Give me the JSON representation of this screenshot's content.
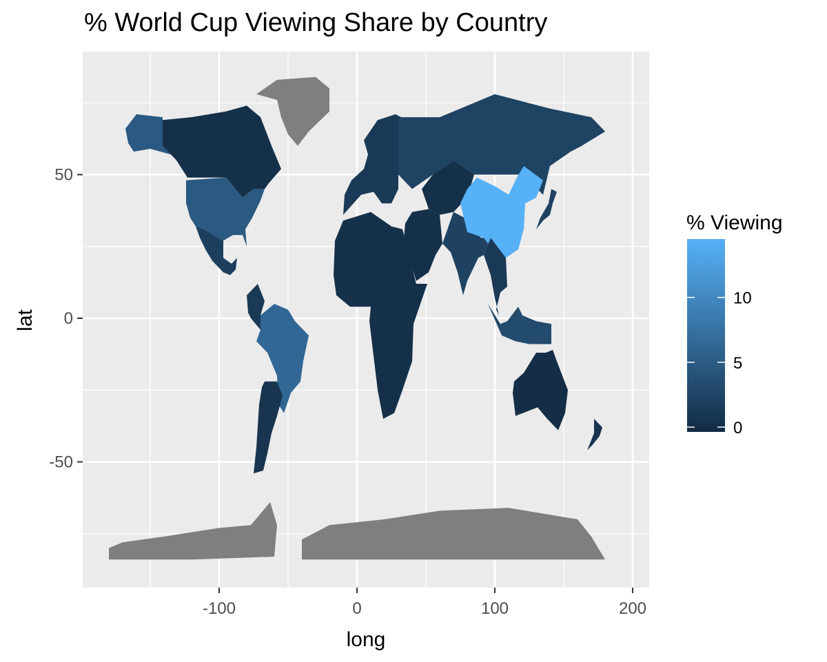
{
  "title": "% World Cup Viewing Share by Country",
  "axes": {
    "x": {
      "label": "long",
      "ticks": [
        -100,
        0,
        100,
        200
      ],
      "range": [
        -190,
        210
      ]
    },
    "y": {
      "label": "lat",
      "ticks": [
        -50,
        0,
        50
      ],
      "range": [
        -92,
        92
      ]
    }
  },
  "legend": {
    "title": "% Viewing",
    "ticks": [
      0,
      5,
      10
    ],
    "range": [
      0,
      14.5
    ],
    "color_low": "#132B43",
    "color_high": "#56B1F7",
    "placement": "right"
  },
  "colors": {
    "panel": "#EBEBEB",
    "grid": "#FFFFFF",
    "na_fill": "#7F7F7F"
  },
  "chart_data": {
    "type": "choropleth",
    "value_label": "% Viewing",
    "regions": [
      {
        "name": "China",
        "value": 14.5
      },
      {
        "name": "Brazil",
        "value": 6.5
      },
      {
        "name": "United States",
        "value": 5
      },
      {
        "name": "Alaska (USA)",
        "value": 5
      },
      {
        "name": "Indonesia",
        "value": 3.5
      },
      {
        "name": "Russia",
        "value": 2.6
      },
      {
        "name": "India",
        "value": 2.5
      },
      {
        "name": "Japan",
        "value": 2.5
      },
      {
        "name": "Mexico",
        "value": 2.2
      },
      {
        "name": "Colombia",
        "value": 1.5
      },
      {
        "name": "Argentina",
        "value": 1
      },
      {
        "name": "Canada",
        "value": 0.5
      },
      {
        "name": "Europe",
        "value": 1.5
      },
      {
        "name": "Africa",
        "value": 0.5
      },
      {
        "name": "Middle East",
        "value": 0.5
      },
      {
        "name": "Central Asia",
        "value": 0.5
      },
      {
        "name": "Australia",
        "value": 0.3
      },
      {
        "name": "Southeast Asia",
        "value": 1.5
      },
      {
        "name": "New Zealand",
        "value": 1
      },
      {
        "name": "Greenland",
        "value": null
      },
      {
        "name": "Antarctica",
        "value": null
      }
    ]
  }
}
